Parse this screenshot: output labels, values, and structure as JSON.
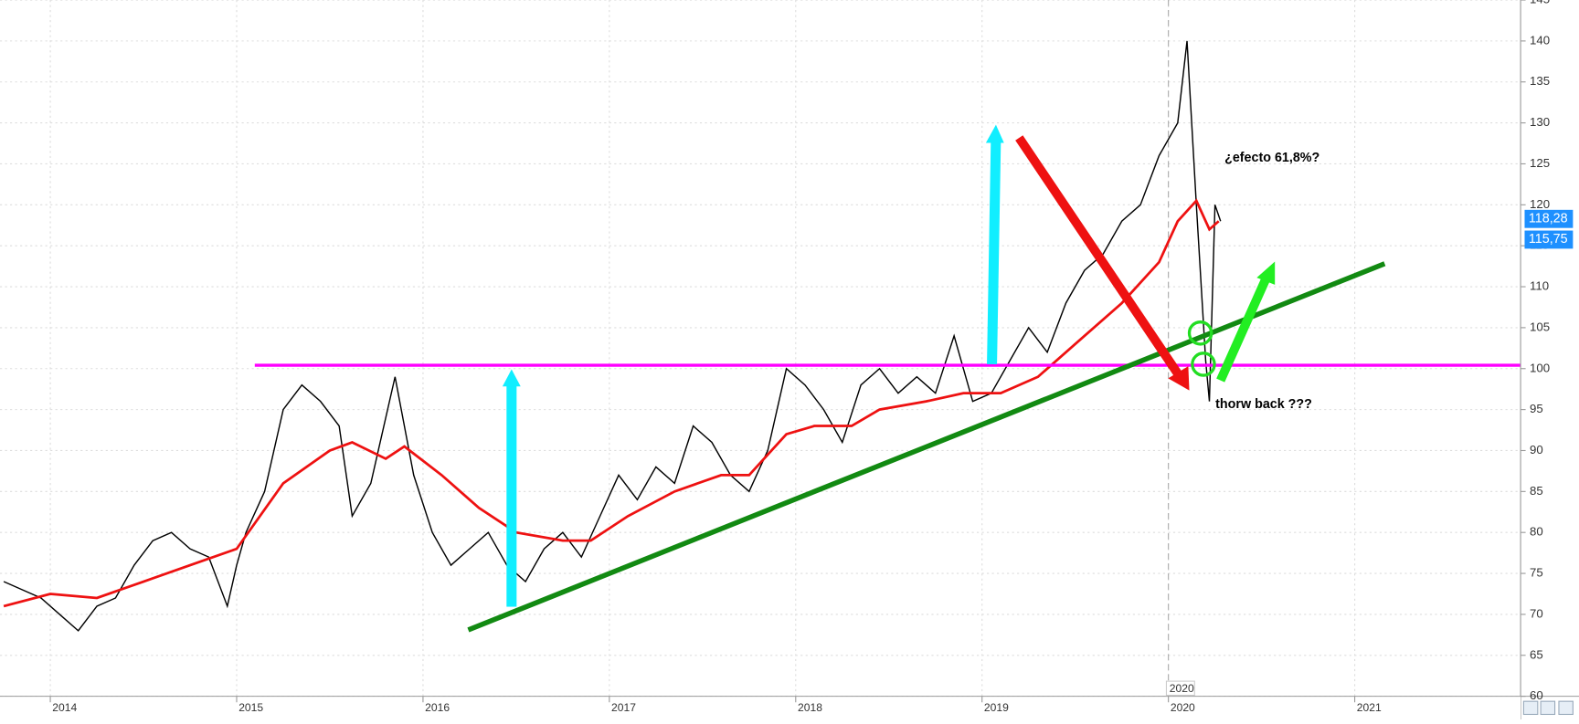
{
  "chart_data": {
    "type": "line",
    "xlim": [
      2013.73,
      2021.89
    ],
    "xticks": [
      2014,
      2015,
      2016,
      2017,
      2018,
      2019,
      2020,
      2021
    ],
    "ylim": [
      60,
      145
    ],
    "yticks": [
      60,
      65,
      70,
      75,
      80,
      85,
      90,
      95,
      100,
      105,
      110,
      115,
      120,
      125,
      130,
      135,
      140,
      145
    ],
    "grid": true,
    "current_x": 2020,
    "annotations": [
      "¿efecto 61,8%?",
      "thorw back ???"
    ],
    "price_labels": [
      {
        "value": 118.28,
        "label": "118,28"
      },
      {
        "value": 115.75,
        "label": "115,75"
      }
    ],
    "series": [
      {
        "name": "Price",
        "color": "#000000",
        "x": [
          2013.75,
          2013.85,
          2013.95,
          2014.05,
          2014.15,
          2014.25,
          2014.35,
          2014.45,
          2014.55,
          2014.65,
          2014.75,
          2014.85,
          2014.95,
          2015.0,
          2015.05,
          2015.15,
          2015.25,
          2015.35,
          2015.45,
          2015.55,
          2015.62,
          2015.72,
          2015.85,
          2015.95,
          2016.05,
          2016.15,
          2016.25,
          2016.35,
          2016.45,
          2016.55,
          2016.65,
          2016.75,
          2016.85,
          2016.95,
          2017.05,
          2017.15,
          2017.25,
          2017.35,
          2017.45,
          2017.55,
          2017.65,
          2017.75,
          2017.85,
          2017.95,
          2018.05,
          2018.15,
          2018.25,
          2018.35,
          2018.45,
          2018.55,
          2018.65,
          2018.75,
          2018.85,
          2018.95,
          2019.05,
          2019.15,
          2019.25,
          2019.35,
          2019.45,
          2019.55,
          2019.65,
          2019.75,
          2019.85,
          2019.95,
          2020.05,
          2020.1,
          2020.15,
          2020.2,
          2020.22,
          2020.25,
          2020.28
        ],
        "values": [
          74,
          73,
          72,
          70,
          68,
          71,
          72,
          76,
          79,
          80,
          78,
          77,
          71,
          76,
          80,
          85,
          95,
          98,
          96,
          93,
          82,
          86,
          99,
          87,
          80,
          76,
          78,
          80,
          76,
          74,
          78,
          80,
          77,
          82,
          87,
          84,
          88,
          86,
          93,
          91,
          87,
          85,
          90,
          100,
          98,
          95,
          91,
          98,
          100,
          97,
          99,
          97,
          104,
          96,
          97,
          101,
          105,
          102,
          108,
          112,
          114,
          118,
          120,
          126,
          130,
          140,
          120,
          101,
          96,
          120,
          118
        ]
      },
      {
        "name": "Moving average",
        "color": "#ee1111",
        "x": [
          2013.75,
          2014.0,
          2014.25,
          2014.5,
          2014.75,
          2015.0,
          2015.25,
          2015.5,
          2015.62,
          2015.8,
          2015.9,
          2016.1,
          2016.3,
          2016.5,
          2016.75,
          2016.9,
          2017.1,
          2017.35,
          2017.6,
          2017.75,
          2017.95,
          2018.1,
          2018.3,
          2018.45,
          2018.7,
          2018.9,
          2019.1,
          2019.3,
          2019.5,
          2019.75,
          2019.95,
          2020.05,
          2020.15,
          2020.22,
          2020.27
        ],
        "values": [
          71,
          72.5,
          72,
          74,
          76,
          78,
          86,
          90,
          91,
          89,
          90.5,
          87,
          83,
          80,
          79,
          79,
          82,
          85,
          87,
          87,
          92,
          93,
          93,
          95,
          96,
          97,
          97,
          99,
          103,
          108,
          113,
          118,
          120.5,
          117,
          118
        ]
      }
    ]
  }
}
